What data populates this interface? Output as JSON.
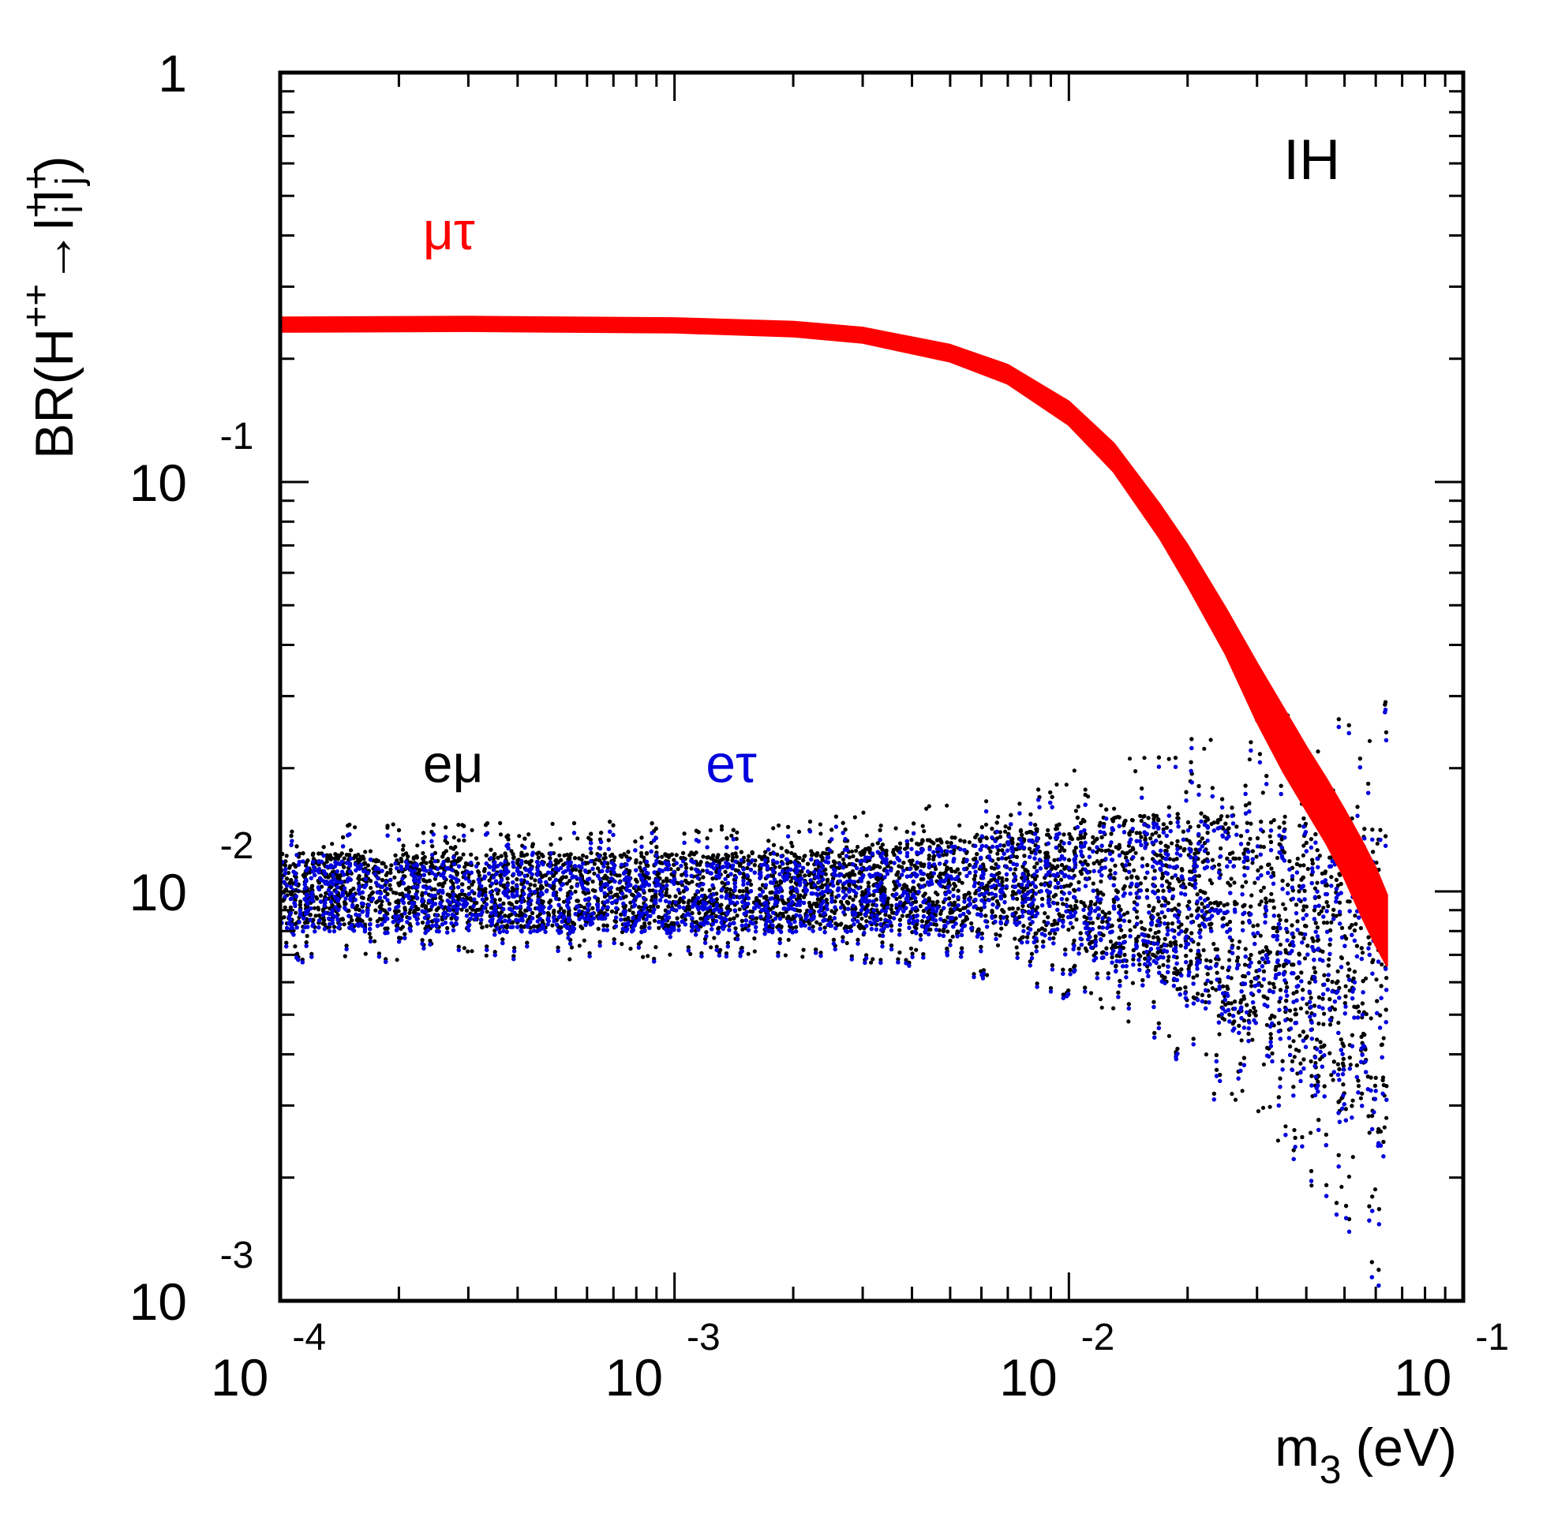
{
  "chart_data": {
    "type": "scatter",
    "title": "",
    "xlabel": {
      "base": "m",
      "sub": "3",
      "unit": "(eV)"
    },
    "ylabel": {
      "pre": "BR(H",
      "sup1": "++",
      "arrow": "→",
      "l1": "l",
      "sup2": "+",
      "sub2": "i",
      "l2": "l",
      "sup3": "+",
      "sub3": "j",
      "post": ")"
    },
    "x_scale": "log",
    "y_scale": "log",
    "xlim": [
      0.0001,
      0.1
    ],
    "ylim": [
      0.001,
      1
    ],
    "x_ticks": [
      {
        "value": 0.0001,
        "base": "10",
        "exp": "-4"
      },
      {
        "value": 0.001,
        "base": "10",
        "exp": "-3"
      },
      {
        "value": 0.01,
        "base": "10",
        "exp": "-2"
      },
      {
        "value": 0.1,
        "base": "10",
        "exp": "-1"
      }
    ],
    "y_ticks": [
      {
        "value": 0.001,
        "base": "10",
        "exp": "-3"
      },
      {
        "value": 0.01,
        "base": "10",
        "exp": "-2"
      },
      {
        "value": 0.1,
        "base": "10",
        "exp": "-1"
      },
      {
        "value": 1,
        "base": "1",
        "exp": ""
      }
    ],
    "annotations": [
      {
        "text": "IH",
        "x": 0.035,
        "y": 0.55,
        "color": "#000000",
        "italic": false
      },
      {
        "text": "μτ",
        "x": 0.00023,
        "y": 0.37,
        "color": "#ff0000",
        "italic": false
      },
      {
        "text": "eμ",
        "x": 0.00023,
        "y": 0.0185,
        "color": "#000000",
        "italic": false
      },
      {
        "text": "eτ",
        "x": 0.0012,
        "y": 0.0185,
        "color": "#0000dd",
        "italic": false
      }
    ],
    "x_max_data": 0.064,
    "series": [
      {
        "name": "μτ",
        "color": "#ff0000",
        "style": "band",
        "x": [
          0.0001,
          0.0003,
          0.001,
          0.002,
          0.003,
          0.005,
          0.007,
          0.01,
          0.013,
          0.017,
          0.02,
          0.025,
          0.03,
          0.035,
          0.04,
          0.045,
          0.05,
          0.055,
          0.06,
          0.064
        ],
        "y_lower": [
          0.233,
          0.234,
          0.232,
          0.227,
          0.219,
          0.197,
          0.174,
          0.138,
          0.106,
          0.073,
          0.056,
          0.038,
          0.026,
          0.0196,
          0.0158,
          0.0131,
          0.0108,
          0.0088,
          0.0074,
          0.0066
        ],
        "y_upper": [
          0.252,
          0.253,
          0.251,
          0.246,
          0.238,
          0.216,
          0.193,
          0.157,
          0.124,
          0.088,
          0.07,
          0.049,
          0.036,
          0.028,
          0.0225,
          0.0188,
          0.0158,
          0.0134,
          0.0114,
          0.0098
        ]
      },
      {
        "name": "eμ",
        "color": "#000000",
        "style": "scatter",
        "x": [
          0.0001,
          0.0003,
          0.001,
          0.002,
          0.003,
          0.005,
          0.007,
          0.01,
          0.015,
          0.02,
          0.03,
          0.04,
          0.05,
          0.06,
          0.064
        ],
        "y_lower": [
          0.0068,
          0.0068,
          0.0068,
          0.0068,
          0.0067,
          0.0064,
          0.006,
          0.0055,
          0.0046,
          0.0037,
          0.0025,
          0.0019,
          0.0015,
          0.0012,
          0.0011
        ],
        "y_upper": [
          0.0148,
          0.0148,
          0.0148,
          0.015,
          0.0156,
          0.0168,
          0.018,
          0.0198,
          0.022,
          0.0238,
          0.0262,
          0.028,
          0.029,
          0.03,
          0.03
        ]
      },
      {
        "name": "eτ",
        "color": "#0000dd",
        "style": "scatter",
        "x": [
          0.0001,
          0.0003,
          0.001,
          0.002,
          0.003,
          0.005,
          0.007,
          0.01,
          0.015,
          0.02,
          0.03,
          0.04,
          0.05,
          0.06,
          0.064
        ],
        "y_lower": [
          0.0067,
          0.0067,
          0.0067,
          0.0067,
          0.0066,
          0.0063,
          0.0059,
          0.0054,
          0.0045,
          0.0036,
          0.0024,
          0.0018,
          0.0014,
          0.0011,
          0.001
        ],
        "y_upper": [
          0.014,
          0.014,
          0.014,
          0.0142,
          0.0147,
          0.0158,
          0.017,
          0.0186,
          0.0208,
          0.0226,
          0.025,
          0.0268,
          0.0278,
          0.0286,
          0.0288
        ]
      }
    ]
  }
}
